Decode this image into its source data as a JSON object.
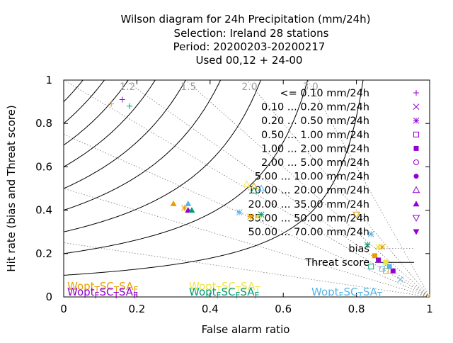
{
  "chart_data": {
    "type": "scatter",
    "title_lines": [
      "Wilson diagram  for 24h Precipitation (mm/24h)",
      "Selection: Ireland      28 stations",
      "Period: 20200203-20200217",
      "Used  00,12  + 24-00"
    ],
    "xlabel": "False alarm ratio",
    "ylabel": "Hit rate (bias and Threat score)",
    "xlim": [
      0,
      1
    ],
    "ylim": [
      0,
      1
    ],
    "xticks": [
      "0",
      "0.2",
      "0.4",
      "0.6",
      "0.8",
      "1"
    ],
    "yticks": [
      "0",
      "0.2",
      "0.4",
      "0.6",
      "0.8",
      "1"
    ],
    "bias_values": [
      0.25,
      0.5,
      0.75,
      1.0,
      1.2,
      1.5,
      2.0,
      3.0
    ],
    "bias_labels": [
      {
        "text": "1.2",
        "value": 1.2
      },
      {
        "text": "1.5",
        "value": 1.5
      },
      {
        "text": "2.0",
        "value": 2.0
      },
      {
        "text": "3.0",
        "value": 3.0
      }
    ],
    "threat_scores": [
      0.1,
      0.2,
      0.3,
      0.4,
      0.5,
      0.6,
      0.7,
      0.8,
      0.9
    ],
    "legend": {
      "position": "top-right",
      "entries": [
        {
          "label": "<= 0.10 mm/24h",
          "color": "#9400d3",
          "marker": "plus"
        },
        {
          "label": "0.10 ... 0.20 mm/24h",
          "color": "#9400d3",
          "marker": "cross"
        },
        {
          "label": "0.20 ... 0.50 mm/24h",
          "color": "#9400d3",
          "marker": "star"
        },
        {
          "label": "0.50 ... 1.00 mm/24h",
          "color": "#9400d3",
          "marker": "square-open"
        },
        {
          "label": "1.00 ... 2.00 mm/24h",
          "color": "#9400d3",
          "marker": "square"
        },
        {
          "label": "2.00 ... 5.00 mm/24h",
          "color": "#9400d3",
          "marker": "circle-open"
        },
        {
          "label": "5.00 ... 10.00 mm/24h",
          "color": "#9400d3",
          "marker": "circle"
        },
        {
          "label": "10.00 ... 20.00 mm/24h",
          "color": "#9400d3",
          "marker": "triangle-open"
        },
        {
          "label": "20.00 ... 35.00 mm/24h",
          "color": "#9400d3",
          "marker": "triangle"
        },
        {
          "label": "35.00 ... 50.00 mm/24h",
          "color": "#9400d3",
          "marker": "triangle-down-open"
        },
        {
          "label": "50.00 ... 70.00 mm/24h",
          "color": "#9400d3",
          "marker": "triangle-down"
        }
      ],
      "bias_key": "bias",
      "threat_key": "Threat score"
    },
    "series": [
      {
        "color": "#e69f00",
        "points": [
          {
            "x": 0.13,
            "y": 0.89,
            "marker": "plus"
          },
          {
            "x": 0.3,
            "y": 0.43,
            "marker": "triangle"
          },
          {
            "x": 0.33,
            "y": 0.41,
            "marker": "star"
          },
          {
            "x": 0.52,
            "y": 0.51,
            "marker": "triangle-open"
          },
          {
            "x": 0.51,
            "y": 0.37,
            "marker": "star"
          },
          {
            "x": 0.8,
            "y": 0.38,
            "marker": "triangle-down-open"
          },
          {
            "x": 0.85,
            "y": 0.19,
            "marker": "square"
          },
          {
            "x": 0.87,
            "y": 0.23,
            "marker": "star"
          },
          {
            "x": 0.88,
            "y": 0.12,
            "marker": "square-open"
          },
          {
            "x": 1.0,
            "y": 0.0,
            "marker": "star"
          }
        ]
      },
      {
        "color": "#9400d3",
        "points": [
          {
            "x": 0.16,
            "y": 0.91,
            "marker": "plus"
          },
          {
            "x": 0.34,
            "y": 0.4,
            "marker": "triangle"
          },
          {
            "x": 0.86,
            "y": 0.17,
            "marker": "square"
          },
          {
            "x": 0.9,
            "y": 0.12,
            "marker": "square"
          }
        ]
      },
      {
        "color": "#f0e442",
        "points": [
          {
            "x": 0.5,
            "y": 0.52,
            "marker": "triangle-open"
          },
          {
            "x": 0.53,
            "y": 0.37,
            "marker": "star"
          },
          {
            "x": 0.86,
            "y": 0.23,
            "marker": "star"
          },
          {
            "x": 0.88,
            "y": 0.16,
            "marker": "square"
          }
        ]
      },
      {
        "color": "#009e73",
        "points": [
          {
            "x": 0.18,
            "y": 0.88,
            "marker": "plus"
          },
          {
            "x": 0.35,
            "y": 0.4,
            "marker": "triangle"
          },
          {
            "x": 0.54,
            "y": 0.38,
            "marker": "star"
          },
          {
            "x": 0.52,
            "y": 0.49,
            "marker": "triangle-open"
          },
          {
            "x": 0.83,
            "y": 0.24,
            "marker": "star"
          },
          {
            "x": 0.84,
            "y": 0.14,
            "marker": "square-open"
          }
        ]
      },
      {
        "color": "#56b4e9",
        "points": [
          {
            "x": 0.34,
            "y": 0.43,
            "marker": "triangle"
          },
          {
            "x": 0.48,
            "y": 0.39,
            "marker": "star"
          },
          {
            "x": 0.54,
            "y": 0.5,
            "marker": "triangle-open"
          },
          {
            "x": 0.84,
            "y": 0.29,
            "marker": "star"
          },
          {
            "x": 0.87,
            "y": 0.13,
            "marker": "square-open"
          },
          {
            "x": 0.89,
            "y": 0.14,
            "marker": "square"
          },
          {
            "x": 0.92,
            "y": 0.08,
            "marker": "cross"
          }
        ]
      }
    ],
    "wopt": [
      {
        "color": "#e69f00",
        "row": 1,
        "col": 1,
        "sub1": "T",
        "a": "S",
        "b": "C",
        "sub2": "T",
        "c": "S",
        "d": "A",
        "sub3": "F"
      },
      {
        "color": "#9400d3",
        "row": 2,
        "col": 1,
        "sub1": "F",
        "a": "S",
        "b": "C",
        "sub2": "T",
        "c": "S",
        "d": "A",
        "sub3": "F"
      },
      {
        "color": "#f0e442",
        "row": 1,
        "col": 2,
        "sub1": "T",
        "a": "S",
        "b": "C",
        "sub2": "T",
        "c": "S",
        "d": "A",
        "sub3": "T"
      },
      {
        "color": "#009e73",
        "row": 2,
        "col": 2,
        "sub1": "F",
        "a": "S",
        "b": "C",
        "sub2": "F",
        "c": "S",
        "d": "A",
        "sub3": "F"
      },
      {
        "color": "#56b4e9",
        "row": 2,
        "col": 3,
        "sub1": "F",
        "a": "S",
        "b": "C",
        "sub2": "T",
        "c": "S",
        "d": "A",
        "sub3": "T"
      }
    ],
    "wopt_word": "Wopt",
    "grid": false
  }
}
